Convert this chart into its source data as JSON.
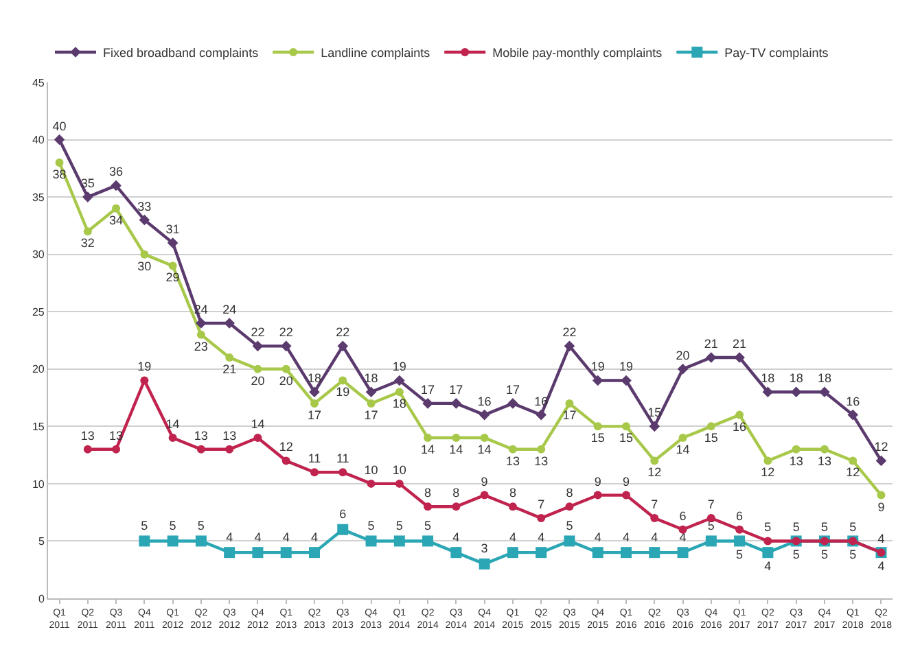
{
  "chart_data": {
    "type": "line",
    "categories": [
      "Q1 2011",
      "Q2 2011",
      "Q3 2011",
      "Q4 2011",
      "Q1 2012",
      "Q2 2012",
      "Q3 2012",
      "Q4 2012",
      "Q1 2013",
      "Q2 2013",
      "Q3 2013",
      "Q4 2013",
      "Q1 2014",
      "Q2 2014",
      "Q3 2014",
      "Q4 2014",
      "Q1 2015",
      "Q2 2015",
      "Q3 2015",
      "Q4 2015",
      "Q1 2016",
      "Q2 2016",
      "Q3 2016",
      "Q4 2016",
      "Q1 2017",
      "Q2 2017",
      "Q3 2017",
      "Q4 2017",
      "Q1 2018",
      "Q2 2018"
    ],
    "series": [
      {
        "name": "Fixed broadband complaints",
        "color": "#5b3a6e",
        "marker": "diamond",
        "values": [
          40,
          35,
          36,
          33,
          31,
          24,
          24,
          22,
          22,
          18,
          22,
          18,
          19,
          17,
          17,
          16,
          17,
          16,
          22,
          19,
          19,
          15,
          20,
          21,
          21,
          18,
          18,
          18,
          16,
          12
        ]
      },
      {
        "name": "Landline complaints",
        "color": "#a8c84a",
        "marker": "circle",
        "values": [
          38,
          32,
          34,
          30,
          29,
          23,
          21,
          20,
          20,
          17,
          19,
          17,
          18,
          14,
          14,
          14,
          13,
          13,
          17,
          15,
          15,
          12,
          14,
          15,
          16,
          12,
          13,
          13,
          12,
          9
        ]
      },
      {
        "name": "Mobile pay-monthly complaints",
        "color": "#c0234e",
        "marker": "circle",
        "values": [
          null,
          13,
          13,
          19,
          14,
          13,
          13,
          14,
          12,
          11,
          11,
          10,
          10,
          8,
          8,
          9,
          8,
          7,
          8,
          9,
          9,
          7,
          6,
          7,
          6,
          5,
          5,
          5,
          5,
          4
        ]
      },
      {
        "name": "Pay-TV complaints",
        "color": "#2aa6b4",
        "marker": "square",
        "values": [
          null,
          null,
          null,
          5,
          5,
          5,
          4,
          4,
          4,
          4,
          6,
          5,
          5,
          5,
          4,
          3,
          4,
          4,
          5,
          4,
          4,
          4,
          4,
          5,
          5,
          4,
          5,
          5,
          5,
          4
        ]
      }
    ],
    "ylim": [
      0,
      45
    ],
    "yticks": [
      0,
      5,
      10,
      15,
      20,
      25,
      30,
      35,
      40,
      45
    ],
    "grid": "y",
    "legend": "top left",
    "data_labels": true,
    "line_style": "solid"
  }
}
